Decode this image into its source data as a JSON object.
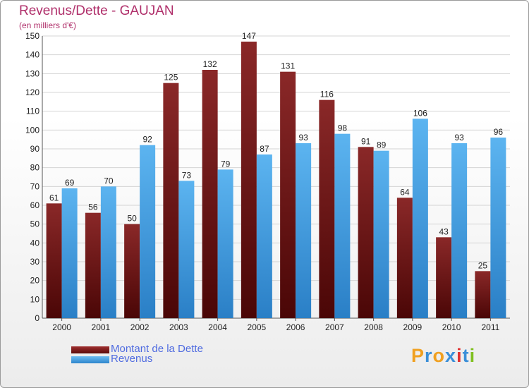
{
  "chart_data": {
    "type": "bar",
    "title": "Revenus/Dette - GAUJAN",
    "subtitle": "(en milliers d'€)",
    "categories": [
      "2000",
      "2001",
      "2002",
      "2003",
      "2004",
      "2005",
      "2006",
      "2007",
      "2008",
      "2009",
      "2010",
      "2011"
    ],
    "series": [
      {
        "name": "Montant de la Dette",
        "color": "#7a1a1a",
        "values": [
          61,
          56,
          50,
          125,
          132,
          147,
          131,
          116,
          91,
          64,
          43,
          25
        ]
      },
      {
        "name": "Revenus",
        "color": "#4aa3e6",
        "values": [
          69,
          70,
          92,
          73,
          79,
          87,
          93,
          98,
          89,
          106,
          93,
          96
        ]
      }
    ],
    "ylim": [
      0,
      150
    ],
    "yticks": [
      0,
      10,
      20,
      30,
      40,
      50,
      60,
      70,
      80,
      90,
      100,
      110,
      120,
      130,
      140,
      150
    ],
    "grid": true,
    "legend_position": "bottom-left"
  },
  "legend": {
    "debt_label": "Montant de la Dette",
    "revenue_label": "Revenus"
  },
  "logo": {
    "text": "Proxiti",
    "letters": [
      "P",
      "r",
      "o",
      "x",
      "i",
      "t",
      "i"
    ],
    "colors": [
      "#f0a020",
      "#3a8fd8",
      "#f0a020",
      "#3a8fd8",
      "#e03030",
      "#3a8fd8",
      "#80c020"
    ]
  }
}
